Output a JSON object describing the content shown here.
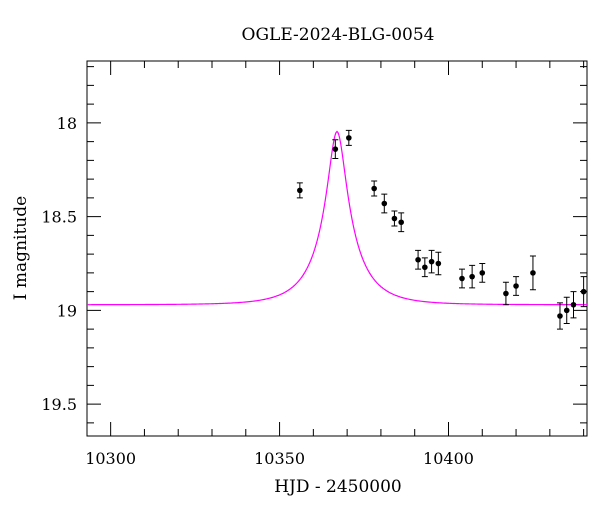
{
  "chart_data": {
    "type": "scatter",
    "title": "OGLE-2024-BLG-0054",
    "xlabel": "HJD - 2450000",
    "ylabel": "I magnitude",
    "xlim": [
      10293,
      10441
    ],
    "ylim": [
      19.67,
      17.67
    ],
    "y_inverted": true,
    "x_ticks": [
      10300,
      10350,
      10400
    ],
    "y_ticks": [
      18,
      18.5,
      19,
      19.5
    ],
    "grid": false,
    "legend": "none",
    "series": [
      {
        "kind": "points",
        "color": "#000000",
        "points": [
          {
            "x": 10356.0,
            "y": 18.36,
            "err": 0.04
          },
          {
            "x": 10366.5,
            "y": 18.14,
            "err": 0.05
          },
          {
            "x": 10370.5,
            "y": 18.08,
            "err": 0.04
          },
          {
            "x": 10378.0,
            "y": 18.35,
            "err": 0.04
          },
          {
            "x": 10381.0,
            "y": 18.43,
            "err": 0.05
          },
          {
            "x": 10384.0,
            "y": 18.51,
            "err": 0.04
          },
          {
            "x": 10386.0,
            "y": 18.53,
            "err": 0.05
          },
          {
            "x": 10391.0,
            "y": 18.73,
            "err": 0.05
          },
          {
            "x": 10393.0,
            "y": 18.77,
            "err": 0.05
          },
          {
            "x": 10395.0,
            "y": 18.74,
            "err": 0.06
          },
          {
            "x": 10397.0,
            "y": 18.75,
            "err": 0.06
          },
          {
            "x": 10404.0,
            "y": 18.83,
            "err": 0.05
          },
          {
            "x": 10407.0,
            "y": 18.82,
            "err": 0.06
          },
          {
            "x": 10410.0,
            "y": 18.8,
            "err": 0.05
          },
          {
            "x": 10417.0,
            "y": 18.91,
            "err": 0.06
          },
          {
            "x": 10420.0,
            "y": 18.87,
            "err": 0.05
          },
          {
            "x": 10425.0,
            "y": 18.8,
            "err": 0.09
          },
          {
            "x": 10433.0,
            "y": 19.03,
            "err": 0.07
          },
          {
            "x": 10435.0,
            "y": 19.0,
            "err": 0.07
          },
          {
            "x": 10437.0,
            "y": 18.97,
            "err": 0.07
          },
          {
            "x": 10440.0,
            "y": 18.9,
            "err": 0.08
          }
        ]
      },
      {
        "kind": "line",
        "color": "#ff00ff",
        "model": {
          "type": "pspl",
          "t0": 10367.0,
          "u0": 0.22,
          "tE": 11.5,
          "baseline": 18.97,
          "blend_fraction": 0.37
        }
      }
    ]
  }
}
